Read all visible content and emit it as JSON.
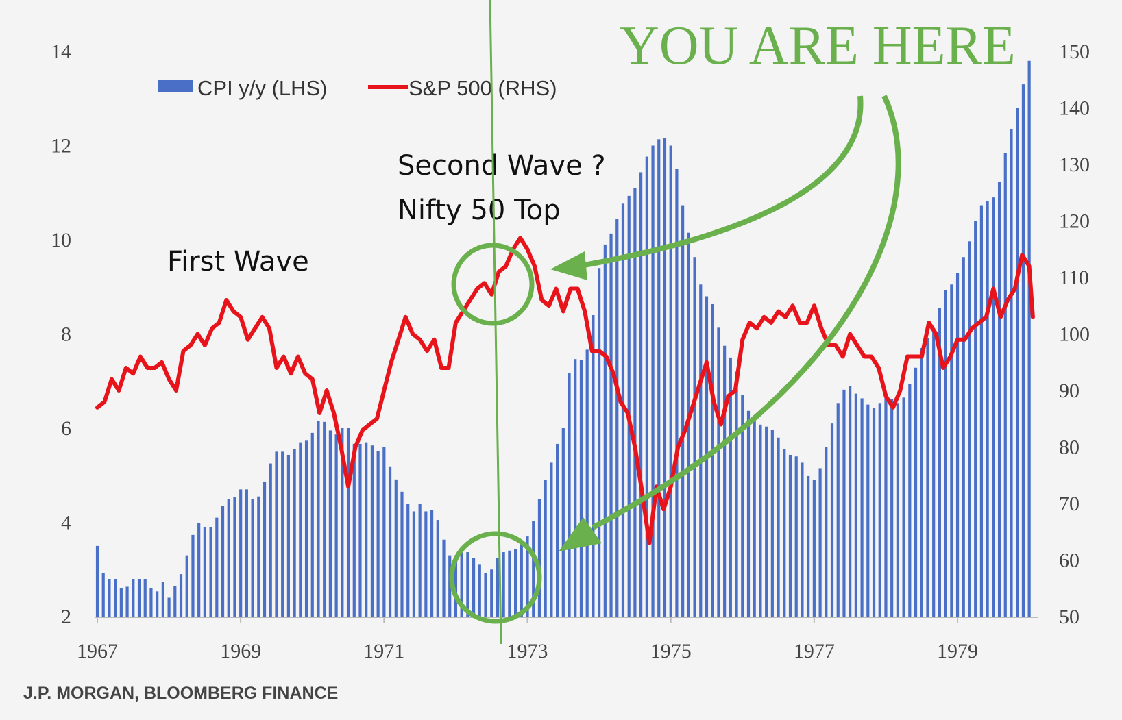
{
  "source": "J.P. MORGAN, BLOOMBERG FINANCE",
  "annotations": {
    "you_are_here": "YOU ARE HERE",
    "first_wave": "First Wave",
    "second_wave_line1": "Second Wave ?",
    "second_wave_line2": "Nifty 50 Top"
  },
  "colors": {
    "bars": "#4a6fc6",
    "line": "#e8141b",
    "annotation": "#6ab04c"
  },
  "chart_data": {
    "type": "bar+line",
    "x_tick_labels": [
      "1967",
      "1969",
      "1971",
      "1973",
      "1975",
      "1977",
      "1979"
    ],
    "y_left": {
      "range": [
        2,
        14
      ],
      "ticks": [
        "2",
        "4",
        "6",
        "8",
        "10",
        "12",
        "14"
      ]
    },
    "y_right": {
      "range": [
        50,
        150
      ],
      "ticks": [
        "50",
        "60",
        "70",
        "80",
        "90",
        "100",
        "110",
        "120",
        "130",
        "140",
        "150"
      ]
    },
    "legend": {
      "position": "top-left",
      "entries": [
        "CPI y/y (LHS)",
        "S&P 500 (RHS)"
      ]
    },
    "cpi_anchors": [
      [
        1967.0,
        3.5
      ],
      [
        1967.1,
        2.8
      ],
      [
        1967.3,
        2.8
      ],
      [
        1967.35,
        2.5
      ],
      [
        1967.5,
        2.8
      ],
      [
        1967.6,
        2.8
      ],
      [
        1967.7,
        2.8
      ],
      [
        1967.8,
        2.4
      ],
      [
        1967.9,
        2.8
      ],
      [
        1968.0,
        2.4
      ],
      [
        1968.1,
        2.7
      ],
      [
        1968.2,
        3.0
      ],
      [
        1968.3,
        3.6
      ],
      [
        1968.4,
        4.0
      ],
      [
        1968.5,
        3.9
      ],
      [
        1968.6,
        3.9
      ],
      [
        1968.7,
        4.2
      ],
      [
        1968.8,
        4.5
      ],
      [
        1968.9,
        4.5
      ],
      [
        1969.0,
        4.7
      ],
      [
        1969.1,
        4.7
      ],
      [
        1969.2,
        4.4
      ],
      [
        1969.3,
        4.7
      ],
      [
        1969.4,
        5.2
      ],
      [
        1969.5,
        5.5
      ],
      [
        1969.6,
        5.5
      ],
      [
        1969.7,
        5.4
      ],
      [
        1969.8,
        5.7
      ],
      [
        1969.9,
        5.7
      ],
      [
        1970.0,
        5.9
      ],
      [
        1970.1,
        6.2
      ],
      [
        1970.2,
        6.1
      ],
      [
        1970.3,
        5.8
      ],
      [
        1970.4,
        6.0
      ],
      [
        1970.5,
        6.0
      ],
      [
        1970.6,
        5.6
      ],
      [
        1970.7,
        5.7
      ],
      [
        1970.8,
        5.7
      ],
      [
        1970.9,
        5.5
      ],
      [
        1971.0,
        5.6
      ],
      [
        1971.05,
        5.3
      ],
      [
        1971.2,
        4.8
      ],
      [
        1971.3,
        4.5
      ],
      [
        1971.4,
        4.2
      ],
      [
        1971.5,
        4.4
      ],
      [
        1971.6,
        4.2
      ],
      [
        1971.7,
        4.3
      ],
      [
        1971.8,
        3.8
      ],
      [
        1971.9,
        3.3
      ],
      [
        1972.0,
        3.3
      ],
      [
        1972.1,
        3.5
      ],
      [
        1972.2,
        3.3
      ],
      [
        1972.3,
        3.2
      ],
      [
        1972.4,
        2.9
      ],
      [
        1972.5,
        3.0
      ],
      [
        1972.6,
        3.3
      ],
      [
        1972.7,
        3.4
      ],
      [
        1972.8,
        3.4
      ],
      [
        1972.9,
        3.5
      ],
      [
        1973.0,
        3.7
      ],
      [
        1973.1,
        4.1
      ],
      [
        1973.2,
        4.7
      ],
      [
        1973.3,
        5.1
      ],
      [
        1973.4,
        5.6
      ],
      [
        1973.5,
        6.0
      ],
      [
        1973.6,
        7.4
      ],
      [
        1973.7,
        7.5
      ],
      [
        1973.8,
        7.4
      ],
      [
        1973.9,
        8.2
      ],
      [
        1974.0,
        9.4
      ],
      [
        1974.1,
        10.0
      ],
      [
        1974.2,
        10.2
      ],
      [
        1974.3,
        10.7
      ],
      [
        1974.5,
        11.1
      ],
      [
        1974.6,
        11.5
      ],
      [
        1974.7,
        11.9
      ],
      [
        1974.8,
        12.1
      ],
      [
        1974.9,
        12.2
      ],
      [
        1975.0,
        12.0
      ],
      [
        1975.1,
        11.4
      ],
      [
        1975.2,
        10.4
      ],
      [
        1975.3,
        9.9
      ],
      [
        1975.4,
        9.1
      ],
      [
        1975.5,
        8.8
      ],
      [
        1975.6,
        8.6
      ],
      [
        1975.7,
        7.9
      ],
      [
        1975.8,
        7.6
      ],
      [
        1975.9,
        7.3
      ],
      [
        1976.0,
        6.7
      ],
      [
        1976.1,
        6.3
      ],
      [
        1976.2,
        6.1
      ],
      [
        1976.4,
        6.0
      ],
      [
        1976.5,
        5.8
      ],
      [
        1976.6,
        5.5
      ],
      [
        1976.7,
        5.4
      ],
      [
        1976.8,
        5.4
      ],
      [
        1976.9,
        5.0
      ],
      [
        1977.0,
        4.9
      ],
      [
        1977.1,
        5.2
      ],
      [
        1977.2,
        5.8
      ],
      [
        1977.3,
        6.4
      ],
      [
        1977.4,
        6.8
      ],
      [
        1977.5,
        6.9
      ],
      [
        1977.6,
        6.7
      ],
      [
        1977.7,
        6.6
      ],
      [
        1977.8,
        6.4
      ],
      [
        1977.9,
        6.5
      ],
      [
        1978.0,
        6.7
      ],
      [
        1978.2,
        6.5
      ],
      [
        1978.3,
        6.8
      ],
      [
        1978.4,
        7.2
      ],
      [
        1978.5,
        7.7
      ],
      [
        1978.7,
        8.2
      ],
      [
        1978.8,
        8.9
      ],
      [
        1978.9,
        9.0
      ],
      [
        1979.0,
        9.3
      ],
      [
        1979.2,
        10.1
      ],
      [
        1979.3,
        10.7
      ],
      [
        1979.5,
        10.9
      ],
      [
        1979.6,
        11.3
      ],
      [
        1979.7,
        12.1
      ],
      [
        1979.8,
        12.6
      ],
      [
        1979.9,
        13.2
      ],
      [
        1980.0,
        13.8
      ],
      [
        1980.1,
        14.0
      ]
    ],
    "sp500_anchors": [
      [
        1967.0,
        87
      ],
      [
        1967.1,
        88
      ],
      [
        1967.2,
        92
      ],
      [
        1967.3,
        90
      ],
      [
        1967.4,
        94
      ],
      [
        1967.5,
        93
      ],
      [
        1967.6,
        96
      ],
      [
        1967.7,
        94
      ],
      [
        1967.8,
        94
      ],
      [
        1967.9,
        95
      ],
      [
        1968.0,
        92
      ],
      [
        1968.1,
        90
      ],
      [
        1968.2,
        97
      ],
      [
        1968.3,
        98
      ],
      [
        1968.4,
        100
      ],
      [
        1968.5,
        98
      ],
      [
        1968.6,
        101
      ],
      [
        1968.7,
        102
      ],
      [
        1968.8,
        106
      ],
      [
        1968.9,
        104
      ],
      [
        1969.0,
        103
      ],
      [
        1969.1,
        99
      ],
      [
        1969.2,
        101
      ],
      [
        1969.3,
        103
      ],
      [
        1969.4,
        101
      ],
      [
        1969.5,
        94
      ],
      [
        1969.6,
        96
      ],
      [
        1969.7,
        93
      ],
      [
        1969.8,
        96
      ],
      [
        1969.9,
        93
      ],
      [
        1970.0,
        92
      ],
      [
        1970.1,
        86
      ],
      [
        1970.2,
        90
      ],
      [
        1970.3,
        86
      ],
      [
        1970.4,
        80
      ],
      [
        1970.5,
        73
      ],
      [
        1970.6,
        80
      ],
      [
        1970.7,
        83
      ],
      [
        1970.8,
        84
      ],
      [
        1970.9,
        85
      ],
      [
        1971.0,
        90
      ],
      [
        1971.1,
        95
      ],
      [
        1971.2,
        99
      ],
      [
        1971.3,
        103
      ],
      [
        1971.4,
        100
      ],
      [
        1971.5,
        99
      ],
      [
        1971.6,
        97
      ],
      [
        1971.7,
        99
      ],
      [
        1971.8,
        94
      ],
      [
        1971.9,
        94
      ],
      [
        1972.0,
        102
      ],
      [
        1972.1,
        104
      ],
      [
        1972.2,
        106
      ],
      [
        1972.3,
        108
      ],
      [
        1972.4,
        109
      ],
      [
        1972.5,
        107
      ],
      [
        1972.6,
        111
      ],
      [
        1972.7,
        112
      ],
      [
        1972.8,
        115
      ],
      [
        1972.9,
        117
      ],
      [
        1973.0,
        115
      ],
      [
        1973.1,
        112
      ],
      [
        1973.2,
        106
      ],
      [
        1973.3,
        105
      ],
      [
        1973.4,
        108
      ],
      [
        1973.5,
        104
      ],
      [
        1973.6,
        108
      ],
      [
        1973.7,
        108
      ],
      [
        1973.8,
        104
      ],
      [
        1973.9,
        97
      ],
      [
        1974.0,
        97
      ],
      [
        1974.1,
        96
      ],
      [
        1974.2,
        93
      ],
      [
        1974.3,
        88
      ],
      [
        1974.4,
        86
      ],
      [
        1974.5,
        80
      ],
      [
        1974.6,
        72
      ],
      [
        1974.7,
        63
      ],
      [
        1974.8,
        73
      ],
      [
        1974.9,
        69
      ],
      [
        1975.0,
        73
      ],
      [
        1975.1,
        80
      ],
      [
        1975.2,
        83
      ],
      [
        1975.3,
        87
      ],
      [
        1975.4,
        91
      ],
      [
        1975.5,
        95
      ],
      [
        1975.6,
        88
      ],
      [
        1975.7,
        84
      ],
      [
        1975.8,
        89
      ],
      [
        1975.9,
        90
      ],
      [
        1976.0,
        99
      ],
      [
        1976.1,
        102
      ],
      [
        1976.2,
        101
      ],
      [
        1976.3,
        103
      ],
      [
        1976.4,
        102
      ],
      [
        1976.5,
        104
      ],
      [
        1976.6,
        103
      ],
      [
        1976.7,
        105
      ],
      [
        1976.8,
        102
      ],
      [
        1976.9,
        102
      ],
      [
        1977.0,
        105
      ],
      [
        1977.1,
        101
      ],
      [
        1977.2,
        98
      ],
      [
        1977.3,
        98
      ],
      [
        1977.4,
        96
      ],
      [
        1977.5,
        100
      ],
      [
        1977.6,
        98
      ],
      [
        1977.7,
        96
      ],
      [
        1977.8,
        96
      ],
      [
        1977.9,
        94
      ],
      [
        1978.0,
        89
      ],
      [
        1978.1,
        87
      ],
      [
        1978.2,
        90
      ],
      [
        1978.3,
        96
      ],
      [
        1978.4,
        96
      ],
      [
        1978.5,
        96
      ],
      [
        1978.6,
        102
      ],
      [
        1978.7,
        100
      ],
      [
        1978.8,
        94
      ],
      [
        1978.9,
        96
      ],
      [
        1979.0,
        99
      ],
      [
        1979.1,
        99
      ],
      [
        1979.2,
        101
      ],
      [
        1979.3,
        102
      ],
      [
        1979.4,
        103
      ],
      [
        1979.5,
        108
      ],
      [
        1979.6,
        103
      ],
      [
        1979.7,
        106
      ],
      [
        1979.8,
        108
      ],
      [
        1979.9,
        114
      ],
      [
        1980.0,
        112
      ],
      [
        1980.05,
        103
      ]
    ]
  }
}
